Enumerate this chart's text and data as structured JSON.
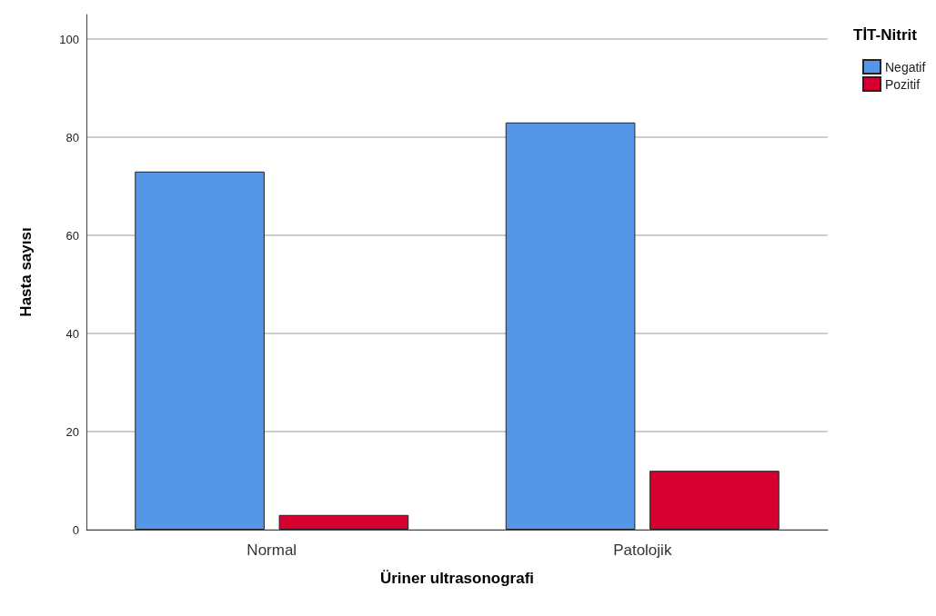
{
  "chart_data": {
    "type": "bar",
    "xlabel": "Üriner ultrasonografi",
    "ylabel": "Hasta sayısı",
    "legend_title": "TİT-Nitrit",
    "categories": [
      "Normal",
      "Patolojik"
    ],
    "series": [
      {
        "name": "Negatif",
        "color": "#5597e6",
        "values": [
          73,
          83
        ]
      },
      {
        "name": "Pozitif",
        "color": "#d5002f",
        "values": [
          3,
          12
        ]
      }
    ],
    "ylim": [
      0,
      105
    ],
    "yticks": [
      0,
      20,
      40,
      60,
      80,
      100
    ],
    "grid": "y",
    "legend": "top right"
  }
}
